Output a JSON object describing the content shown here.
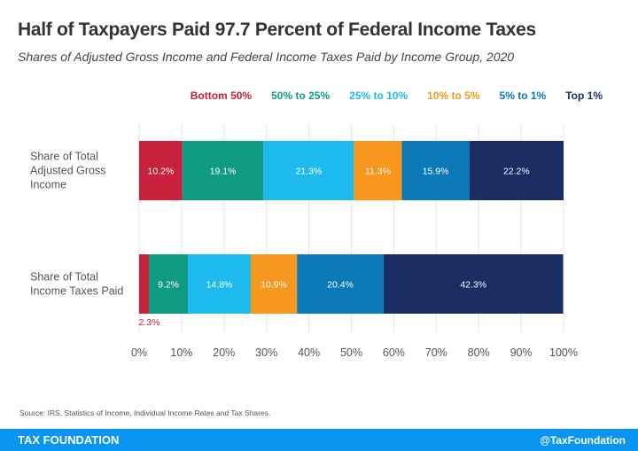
{
  "chart_data": {
    "type": "bar",
    "orientation": "horizontal",
    "stacked": true,
    "title": "Half of Taxpayers Paid 97.7 Percent of Federal Income Taxes",
    "subtitle": "Shares of Adjusted Gross Income and Federal Income Taxes Paid by Income Group, 2020",
    "categories": [
      "Share of Total Adjusted Gross Income",
      "Share of Total Income Taxes Paid"
    ],
    "series": [
      {
        "name": "Bottom 50%",
        "color": "#c8213c",
        "values": [
          10.2,
          2.3
        ]
      },
      {
        "name": "50% to 25%",
        "color": "#0f9b82",
        "values": [
          19.1,
          9.2
        ]
      },
      {
        "name": "25% to 10%",
        "color": "#1dbbed",
        "values": [
          21.3,
          14.8
        ]
      },
      {
        "name": "10% to 5%",
        "color": "#f7971d",
        "values": [
          11.3,
          10.9
        ]
      },
      {
        "name": "5% to 1%",
        "color": "#0b78b8",
        "values": [
          15.9,
          20.4
        ]
      },
      {
        "name": "Top 1%",
        "color": "#1b2c63",
        "values": [
          22.2,
          42.3
        ]
      }
    ],
    "xlim": [
      0,
      100
    ],
    "xticks": [
      "0%",
      "10%",
      "20%",
      "30%",
      "40%",
      "50%",
      "60%",
      "70%",
      "80%",
      "90%",
      "100%"
    ],
    "grid": true,
    "legend": "top-right"
  },
  "category_lines": [
    [
      "Share of Total",
      "Adjusted Gross",
      "Income"
    ],
    [
      "Share of Total",
      "Income Taxes Paid"
    ]
  ],
  "source": "Source: IRS, Statistics of Income, Individual Income Rates and Tax Shares.",
  "footer": {
    "brand": "TAX FOUNDATION",
    "handle": "@TaxFoundation",
    "color": "#0a96f0"
  }
}
